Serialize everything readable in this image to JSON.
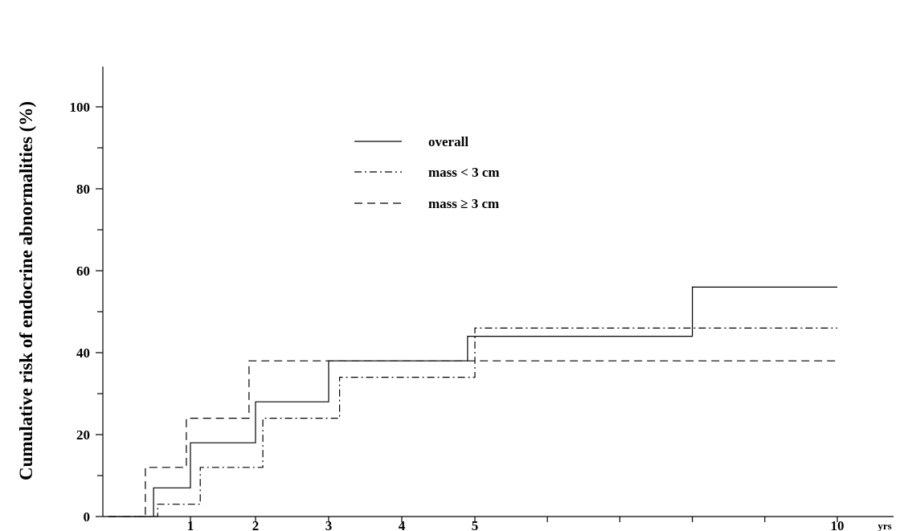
{
  "chart_data": {
    "type": "line",
    "step": true,
    "ylabel": "Cumulative risk of endocrine abnormalities (%)",
    "x_unit_label": "yrs",
    "ylim": [
      0,
      100
    ],
    "yticks": [
      0,
      20,
      40,
      60,
      80,
      100
    ],
    "xticks": [
      1,
      2,
      3,
      4,
      5,
      10
    ],
    "grid": false,
    "legend_position": "top-center",
    "series": [
      {
        "name": "overall",
        "dash": "solid",
        "points": [
          [
            0,
            0
          ],
          [
            0.55,
            0
          ],
          [
            0.55,
            7
          ],
          [
            1.0,
            7
          ],
          [
            1.0,
            18
          ],
          [
            2.0,
            18
          ],
          [
            2.0,
            28
          ],
          [
            3.0,
            28
          ],
          [
            3.0,
            38
          ],
          [
            4.9,
            38
          ],
          [
            4.9,
            44
          ],
          [
            8.0,
            44
          ],
          [
            8.0,
            56
          ],
          [
            10.0,
            56
          ]
        ]
      },
      {
        "name": "mass < 3 cm",
        "dash": "dash-dot",
        "points": [
          [
            0,
            0
          ],
          [
            0.6,
            0
          ],
          [
            0.6,
            3
          ],
          [
            1.15,
            3
          ],
          [
            1.15,
            12
          ],
          [
            2.1,
            12
          ],
          [
            2.1,
            24
          ],
          [
            3.15,
            24
          ],
          [
            3.15,
            34
          ],
          [
            5.0,
            34
          ],
          [
            5.0,
            46
          ],
          [
            10.0,
            46
          ]
        ]
      },
      {
        "name": "mass ≥ 3 cm",
        "dash": "dashed",
        "points": [
          [
            0,
            0
          ],
          [
            0.45,
            0
          ],
          [
            0.45,
            12
          ],
          [
            0.95,
            12
          ],
          [
            0.95,
            24
          ],
          [
            1.9,
            24
          ],
          [
            1.9,
            38
          ],
          [
            10.0,
            38
          ]
        ]
      }
    ]
  }
}
